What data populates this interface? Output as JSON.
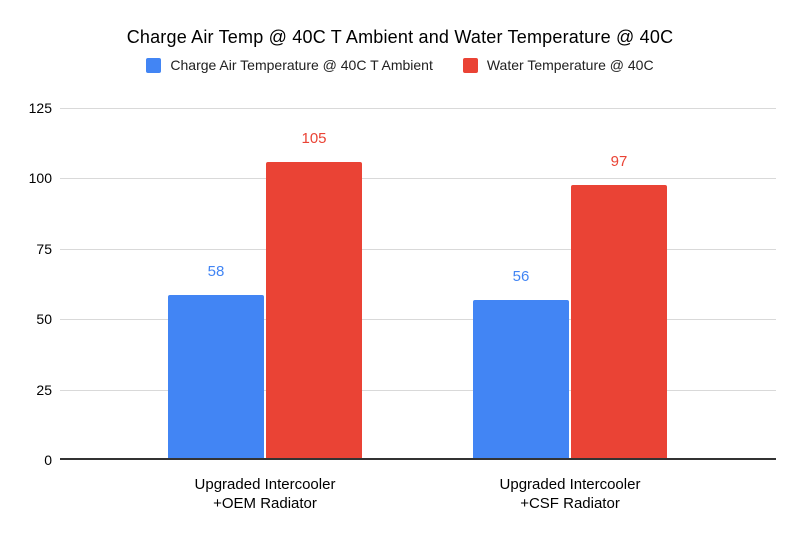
{
  "chart_data": {
    "type": "bar",
    "title": "Charge Air Temp @ 40C T Ambient and Water Temperature @ 40C",
    "categories": [
      {
        "line1": "Upgraded Intercooler",
        "line2": "+OEM Radiator"
      },
      {
        "line1": "Upgraded Intercooler",
        "line2": "+CSF Radiator"
      }
    ],
    "series": [
      {
        "name": "Charge Air Temperature @ 40C T Ambient",
        "color": "#4285F4",
        "values": [
          58,
          56
        ]
      },
      {
        "name": "Water Temperature @ 40C",
        "color": "#EA4335",
        "values": [
          105,
          97
        ]
      }
    ],
    "xlabel": "",
    "ylabel": "",
    "ylim": [
      0,
      125
    ],
    "yticks": [
      0,
      25,
      50,
      75,
      100,
      125
    ],
    "grid": true,
    "legend_position": "top",
    "background": "#ffffff",
    "gridline_color": "#d9d9d9",
    "axis_color": "#333333"
  }
}
